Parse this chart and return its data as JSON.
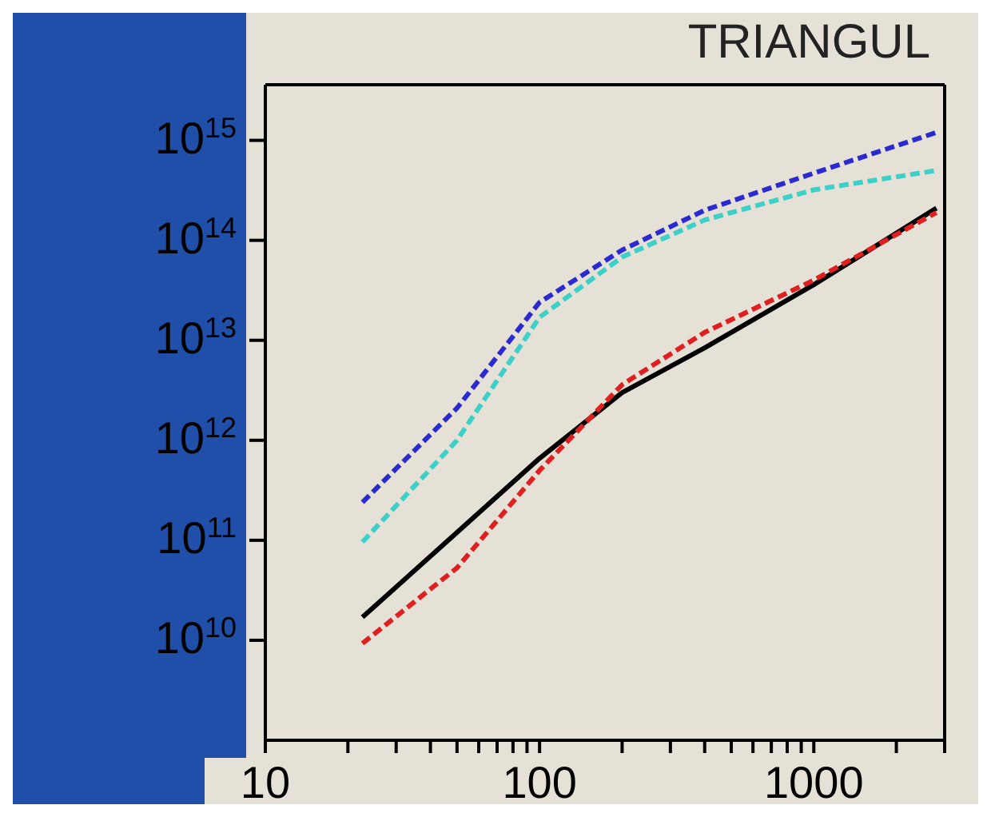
{
  "chart_data": {
    "type": "line",
    "title": "TRIANGUL",
    "x": [
      22.6,
      50,
      100,
      200,
      400,
      1000,
      2800
    ],
    "series": [
      {
        "color": "#2a2ad0",
        "line_style": "dashed",
        "values": [
          240000000000.0,
          2100000000000.0,
          24000000000000.0,
          80000000000000.0,
          200000000000000.0,
          470000000000000.0,
          1200000000000000.0
        ]
      },
      {
        "color": "#3cd0c8",
        "line_style": "dashed",
        "values": [
          96000000000.0,
          1000000000000.0,
          17000000000000.0,
          68000000000000.0,
          160000000000000.0,
          320000000000000.0,
          500000000000000.0
        ]
      },
      {
        "color": "#000000",
        "line_style": "solid",
        "values": [
          17000000000.0,
          120000000000.0,
          660000000000.0,
          3000000000000.0,
          8400000000000.0,
          36000000000000.0,
          210000000000000.0
        ]
      },
      {
        "color": "#e02020",
        "line_style": "dashed",
        "values": [
          9300000000.0,
          53000000000.0,
          500000000000.0,
          3600000000000.0,
          12000000000000.0,
          40000000000000.0,
          190000000000000.0
        ]
      }
    ],
    "log": "xy",
    "xlim": [
      10,
      3000
    ],
    "ylim": [
      1000000000.0,
      3600000000000000.0
    ],
    "xticks": [
      10,
      {
        "value": 20,
        "label": null
      },
      {
        "value": 30,
        "label": null
      },
      {
        "value": 40,
        "label": null
      },
      {
        "value": 50,
        "label": null
      },
      {
        "value": 60,
        "label": null
      },
      {
        "value": 70,
        "label": null
      },
      {
        "value": 80,
        "label": null
      },
      {
        "value": 90,
        "label": null
      },
      100,
      {
        "value": 200,
        "label": null
      },
      {
        "value": 300,
        "label": null
      },
      {
        "value": 400,
        "label": null
      },
      {
        "value": 500,
        "label": null
      },
      {
        "value": 600,
        "label": null
      },
      {
        "value": 700,
        "label": null
      },
      {
        "value": 800,
        "label": null
      },
      {
        "value": 900,
        "label": null
      },
      1000,
      {
        "value": 2000,
        "label": null
      },
      {
        "value": 3000,
        "label": null
      }
    ],
    "yticks": [
      {
        "value": 10000000000.0,
        "label": "10$^{10}$"
      },
      {
        "value": 100000000000.0,
        "label": "10$^{11}$"
      },
      {
        "value": 1000000000000.0,
        "label": "10$^{12}$"
      },
      {
        "value": 10000000000000.0,
        "label": "10$^{13}$"
      },
      {
        "value": 100000000000000.0,
        "label": "10$^{14}$"
      },
      {
        "value": 1000000000000000.0,
        "label": "10$^{15}$"
      }
    ],
    "marker": "none",
    "grid": false,
    "legend": false
  }
}
